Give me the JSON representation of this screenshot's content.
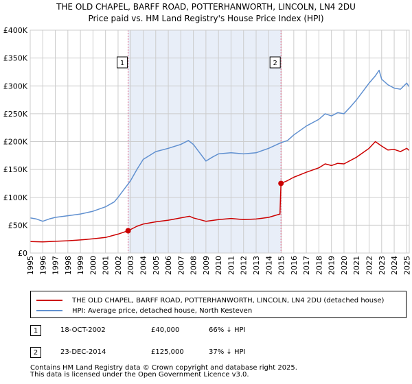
{
  "title_line1": "THE OLD CHAPEL, BARFF ROAD, POTTERHANWORTH, LINCOLN, LN4 2DU",
  "title_line2": "Price paid vs. HM Land Registry's House Price Index (HPI)",
  "colors": {
    "price_line": "#cc0000",
    "hpi_line": "#6090d0",
    "shade": "#e8eef8",
    "grid": "#cccccc",
    "marker_dash": "#e06080"
  },
  "chart_data": {
    "type": "line",
    "title": "THE OLD CHAPEL, BARFF ROAD, POTTERHANWORTH, LINCOLN, LN4 2DU — Price paid vs. HM Land Registry's House Price Index (HPI)",
    "xlim": [
      1995,
      2025.2
    ],
    "ylim": [
      0,
      400000
    ],
    "x_ticks": [
      1995,
      1996,
      1997,
      1998,
      1999,
      2000,
      2001,
      2002,
      2003,
      2004,
      2005,
      2006,
      2007,
      2008,
      2009,
      2010,
      2011,
      2012,
      2013,
      2014,
      2015,
      2016,
      2017,
      2018,
      2019,
      2020,
      2021,
      2022,
      2023,
      2024,
      2025
    ],
    "y_ticks": [
      0,
      50000,
      100000,
      150000,
      200000,
      250000,
      300000,
      350000,
      400000
    ],
    "y_tick_labels": [
      "£0",
      "£50K",
      "£100K",
      "£150K",
      "£200K",
      "£250K",
      "£300K",
      "£350K",
      "£400K"
    ],
    "grid": true,
    "shaded_region": [
      2002.8,
      2014.98
    ],
    "series": [
      {
        "name": "THE OLD CHAPEL, BARFF ROAD, POTTERHANWORTH, LINCOLN, LN4 2DU (detached house)",
        "color": "#cc0000",
        "points": [
          [
            1995,
            20500
          ],
          [
            1996,
            20000
          ],
          [
            1997,
            21000
          ],
          [
            1998,
            22000
          ],
          [
            1999,
            23500
          ],
          [
            2000,
            25500
          ],
          [
            2001,
            28000
          ],
          [
            2002,
            34000
          ],
          [
            2002.8,
            40000
          ],
          [
            2003.5,
            48000
          ],
          [
            2004,
            52000
          ],
          [
            2005,
            56000
          ],
          [
            2006,
            59000
          ],
          [
            2007,
            63000
          ],
          [
            2007.7,
            66000
          ],
          [
            2008,
            63000
          ],
          [
            2009,
            57000
          ],
          [
            2010,
            60000
          ],
          [
            2011,
            62000
          ],
          [
            2012,
            60000
          ],
          [
            2013,
            61000
          ],
          [
            2014,
            64000
          ],
          [
            2014.9,
            70000
          ],
          [
            2014.98,
            125000
          ],
          [
            2015.5,
            130000
          ],
          [
            2016,
            136000
          ],
          [
            2017,
            145000
          ],
          [
            2018,
            153000
          ],
          [
            2018.5,
            160000
          ],
          [
            2019,
            157000
          ],
          [
            2019.5,
            161000
          ],
          [
            2020,
            160000
          ],
          [
            2020.5,
            166000
          ],
          [
            2021,
            172000
          ],
          [
            2021.5,
            180000
          ],
          [
            2022,
            188000
          ],
          [
            2022.5,
            200000
          ],
          [
            2023,
            192000
          ],
          [
            2023.5,
            185000
          ],
          [
            2024,
            186000
          ],
          [
            2024.5,
            182000
          ],
          [
            2025,
            188000
          ],
          [
            2025.2,
            184000
          ]
        ]
      },
      {
        "name": "HPI: Average price, detached house, North Kesteven",
        "color": "#6090d0",
        "points": [
          [
            1995,
            63000
          ],
          [
            1995.5,
            61000
          ],
          [
            1996,
            57000
          ],
          [
            1996.5,
            61000
          ],
          [
            1997,
            64000
          ],
          [
            1998,
            67000
          ],
          [
            1999,
            70000
          ],
          [
            2000,
            75000
          ],
          [
            2001,
            83000
          ],
          [
            2001.7,
            92000
          ],
          [
            2002,
            100000
          ],
          [
            2002.5,
            115000
          ],
          [
            2003,
            130000
          ],
          [
            2003.5,
            150000
          ],
          [
            2004,
            168000
          ],
          [
            2005,
            182000
          ],
          [
            2006,
            188000
          ],
          [
            2007,
            195000
          ],
          [
            2007.6,
            202000
          ],
          [
            2008,
            195000
          ],
          [
            2008.5,
            180000
          ],
          [
            2009,
            165000
          ],
          [
            2009.5,
            172000
          ],
          [
            2010,
            178000
          ],
          [
            2011,
            180000
          ],
          [
            2012,
            178000
          ],
          [
            2013,
            180000
          ],
          [
            2014,
            188000
          ],
          [
            2014.98,
            198000
          ],
          [
            2015.5,
            202000
          ],
          [
            2016,
            212000
          ],
          [
            2017,
            228000
          ],
          [
            2018,
            240000
          ],
          [
            2018.5,
            250000
          ],
          [
            2019,
            246000
          ],
          [
            2019.5,
            252000
          ],
          [
            2020,
            250000
          ],
          [
            2020.5,
            262000
          ],
          [
            2021,
            275000
          ],
          [
            2021.5,
            290000
          ],
          [
            2022,
            305000
          ],
          [
            2022.5,
            318000
          ],
          [
            2022.8,
            328000
          ],
          [
            2023,
            312000
          ],
          [
            2023.5,
            302000
          ],
          [
            2024,
            296000
          ],
          [
            2024.5,
            294000
          ],
          [
            2025,
            305000
          ],
          [
            2025.2,
            298000
          ]
        ]
      }
    ],
    "sales": [
      {
        "label": "1",
        "x": 2002.8,
        "price": 40000
      },
      {
        "label": "2",
        "x": 2014.98,
        "price": 125000
      }
    ]
  },
  "legend": {
    "price_label": "THE OLD CHAPEL, BARFF ROAD, POTTERHANWORTH, LINCOLN, LN4 2DU (detached house)",
    "hpi_label": "HPI: Average price, detached house, North Kesteven"
  },
  "sales_table": [
    {
      "num": "1",
      "date": "18-OCT-2002",
      "price": "£40,000",
      "hpi": "66% ↓ HPI"
    },
    {
      "num": "2",
      "date": "23-DEC-2014",
      "price": "£125,000",
      "hpi": "37% ↓ HPI"
    }
  ],
  "footer": {
    "line1": "Contains HM Land Registry data © Crown copyright and database right 2025.",
    "line2": "This data is licensed under the Open Government Licence v3.0."
  }
}
